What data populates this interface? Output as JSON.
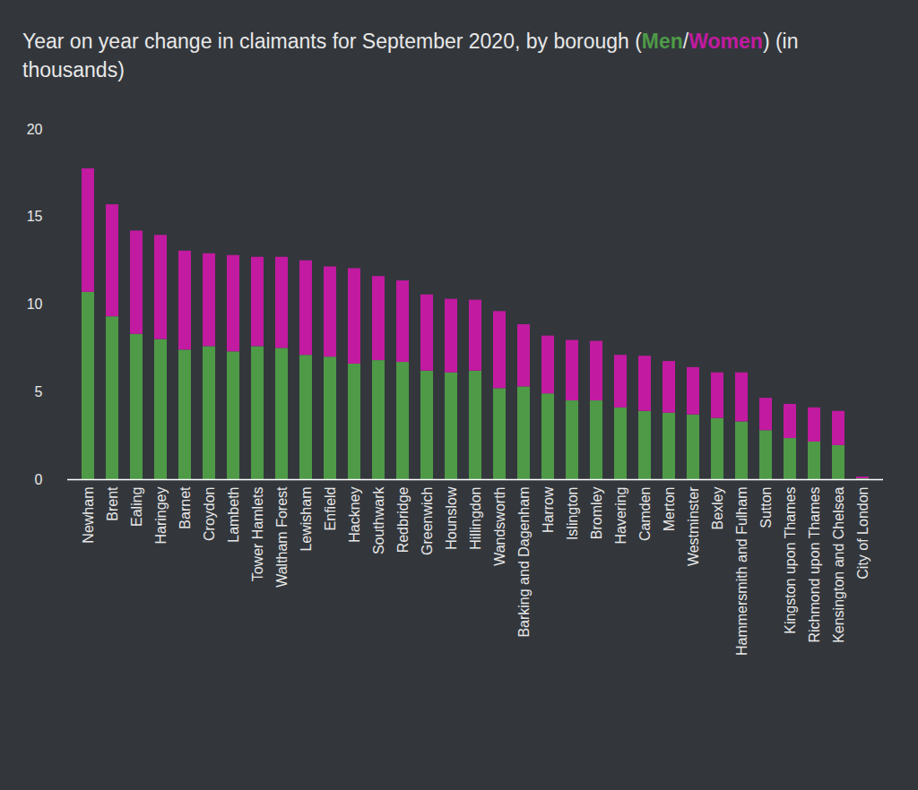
{
  "chart_data": {
    "type": "bar",
    "title": "Year on year change in claimants for September 2020, by borough (Men/Women) (in thousands)",
    "stacked": true,
    "categories": [
      "Newham",
      "Brent",
      "Ealing",
      "Haringey",
      "Barnet",
      "Croydon",
      "Lambeth",
      "Tower Hamlets",
      "Waltham Forest",
      "Lewisham",
      "Enfield",
      "Hackney",
      "Southwark",
      "Redbridge",
      "Greenwich",
      "Hounslow",
      "Hillingdon",
      "Wandsworth",
      "Barking and Dagenham",
      "Harrow",
      "Islington",
      "Bromley",
      "Havering",
      "Camden",
      "Merton",
      "Westminster",
      "Bexley",
      "Hammersmith and Fulham",
      "Sutton",
      "Kingston upon Thames",
      "Richmond upon Thames",
      "Kensington and Chelsea",
      "City of London"
    ],
    "series": [
      {
        "name": "Men",
        "color": "#4e9a47",
        "values": [
          10.7,
          9.3,
          8.3,
          8.0,
          7.4,
          7.6,
          7.3,
          7.6,
          7.5,
          7.1,
          7.0,
          6.6,
          6.8,
          6.7,
          6.2,
          6.1,
          6.2,
          5.2,
          5.3,
          4.9,
          4.5,
          4.5,
          4.1,
          3.9,
          3.8,
          3.7,
          3.5,
          3.3,
          2.8,
          2.35,
          2.15,
          1.95,
          0.05
        ]
      },
      {
        "name": "Women",
        "color": "#c21aa0",
        "values": [
          7.05,
          6.4,
          5.9,
          5.95,
          5.65,
          5.3,
          5.5,
          5.1,
          5.2,
          5.4,
          5.15,
          5.45,
          4.8,
          4.65,
          4.35,
          4.2,
          4.05,
          4.4,
          3.55,
          3.3,
          3.45,
          3.4,
          3.0,
          3.15,
          2.95,
          2.7,
          2.6,
          2.8,
          1.85,
          1.95,
          1.95,
          1.95,
          0.1
        ]
      }
    ],
    "ylim": [
      0,
      20
    ],
    "yticks": [
      0,
      5,
      10,
      15,
      20
    ],
    "grid": false
  }
}
